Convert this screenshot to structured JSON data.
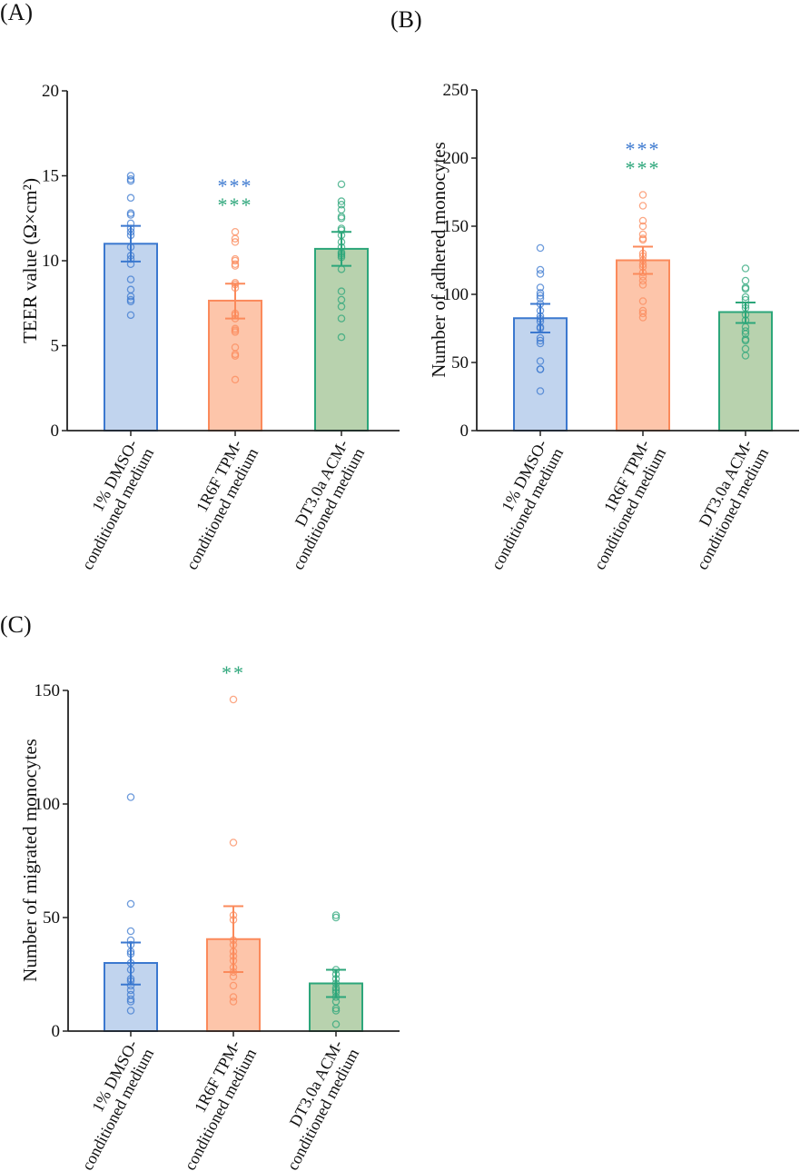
{
  "colors": {
    "blue": "#3b78cf",
    "blue_fill": "#c1d4ee",
    "orange": "#fb8a5b",
    "orange_fill": "#fdc5aa",
    "green": "#2ca67a",
    "green_fill": "#b8d2ae",
    "axis": "#222222"
  },
  "chart_data": [
    {
      "panel": "(A)",
      "type": "bar",
      "ylabel": "TEER value (Ω×cm²)",
      "ylim": [
        0,
        20
      ],
      "yticks": [
        "0",
        "5",
        "10",
        "15",
        "20"
      ],
      "categories": [
        [
          "1% DMSO-",
          "conditioned medium"
        ],
        [
          "1R6F TPM-",
          "conditioned medium"
        ],
        [
          "DT3.0a ACM-",
          "conditioned medium"
        ]
      ],
      "means": [
        11.0,
        7.65,
        10.7
      ],
      "err_low": [
        9.95,
        6.6,
        9.7
      ],
      "err_high": [
        12.05,
        8.65,
        11.7
      ],
      "points": [
        [
          15.0,
          14.8,
          14.7,
          13.7,
          12.8,
          12.7,
          12.2,
          11.9,
          11.7,
          11.5,
          10.8,
          10.3,
          10.1,
          9.8,
          8.9,
          8.3,
          7.9,
          7.7,
          7.6,
          6.8
        ],
        [
          11.7,
          11.3,
          11.1,
          10.1,
          10.0,
          9.8,
          9.7,
          8.7,
          8.6,
          8.4,
          6.9,
          6.8,
          6.6,
          6.0,
          5.9,
          5.8,
          4.9,
          4.5,
          4.4,
          3.0
        ],
        [
          14.5,
          13.5,
          13.3,
          13.0,
          12.6,
          12.5,
          11.9,
          11.8,
          11.5,
          11.1,
          10.8,
          10.5,
          10.4,
          10.3,
          10.2,
          9.5,
          8.2,
          7.7,
          7.3,
          6.6,
          5.5
        ]
      ],
      "significance": [
        {
          "category": 1,
          "blue": "***",
          "green": "***"
        }
      ]
    },
    {
      "panel": "(B)",
      "type": "bar",
      "ylabel": "Number of adhered monocytes",
      "ylim": [
        0,
        250
      ],
      "yticks": [
        "0",
        "50",
        "100",
        "150",
        "200",
        "250"
      ],
      "categories": [
        [
          "1% DMSO-",
          "conditioned medium"
        ],
        [
          "1R6F TPM-",
          "conditioned medium"
        ],
        [
          "DT3.0a ACM-",
          "conditioned medium"
        ]
      ],
      "means": [
        82.5,
        125,
        87
      ],
      "err_low": [
        72,
        115,
        79
      ],
      "err_high": [
        93,
        135,
        94
      ],
      "points": [
        [
          134,
          118,
          115,
          105,
          101,
          99,
          97,
          93,
          88,
          84,
          82,
          80,
          76,
          75,
          68,
          66,
          64,
          51,
          45,
          45,
          29
        ],
        [
          173,
          165,
          154,
          150,
          144,
          141,
          140,
          130,
          128,
          125,
          122,
          120,
          116,
          113,
          110,
          107,
          95,
          88,
          86,
          83
        ],
        [
          119,
          110,
          105,
          104,
          98,
          96,
          92,
          90,
          85,
          81,
          76,
          73,
          71,
          67,
          66,
          60,
          55
        ]
      ],
      "significance": [
        {
          "category": 1,
          "blue": "***",
          "green": "***"
        }
      ]
    },
    {
      "panel": "(C)",
      "type": "bar",
      "ylabel": "Number of migrated monocytes",
      "ylim": [
        0,
        150
      ],
      "yticks": [
        "0",
        "50",
        "100",
        "150"
      ],
      "categories": [
        [
          "1% DMSO-",
          "conditioned medium"
        ],
        [
          "1R6F TPM-",
          "conditioned medium"
        ],
        [
          "DT3.0a ACM-",
          "conditioned medium"
        ]
      ],
      "means": [
        30,
        40.5,
        21
      ],
      "err_low": [
        20.5,
        26,
        15
      ],
      "err_high": [
        39,
        55,
        27
      ],
      "points": [
        [
          103,
          56,
          44,
          40,
          38,
          35,
          34,
          30,
          27,
          23,
          22,
          20,
          18,
          16,
          14,
          13,
          9
        ],
        [
          146,
          83,
          51,
          49,
          40,
          38,
          35,
          33,
          31,
          28,
          26,
          24,
          20,
          15,
          13
        ],
        [
          51,
          50,
          27,
          25,
          23,
          21,
          19,
          18,
          17,
          15,
          13,
          10,
          9,
          3
        ]
      ],
      "significance": [
        {
          "category": 1,
          "green": "**"
        }
      ]
    }
  ]
}
